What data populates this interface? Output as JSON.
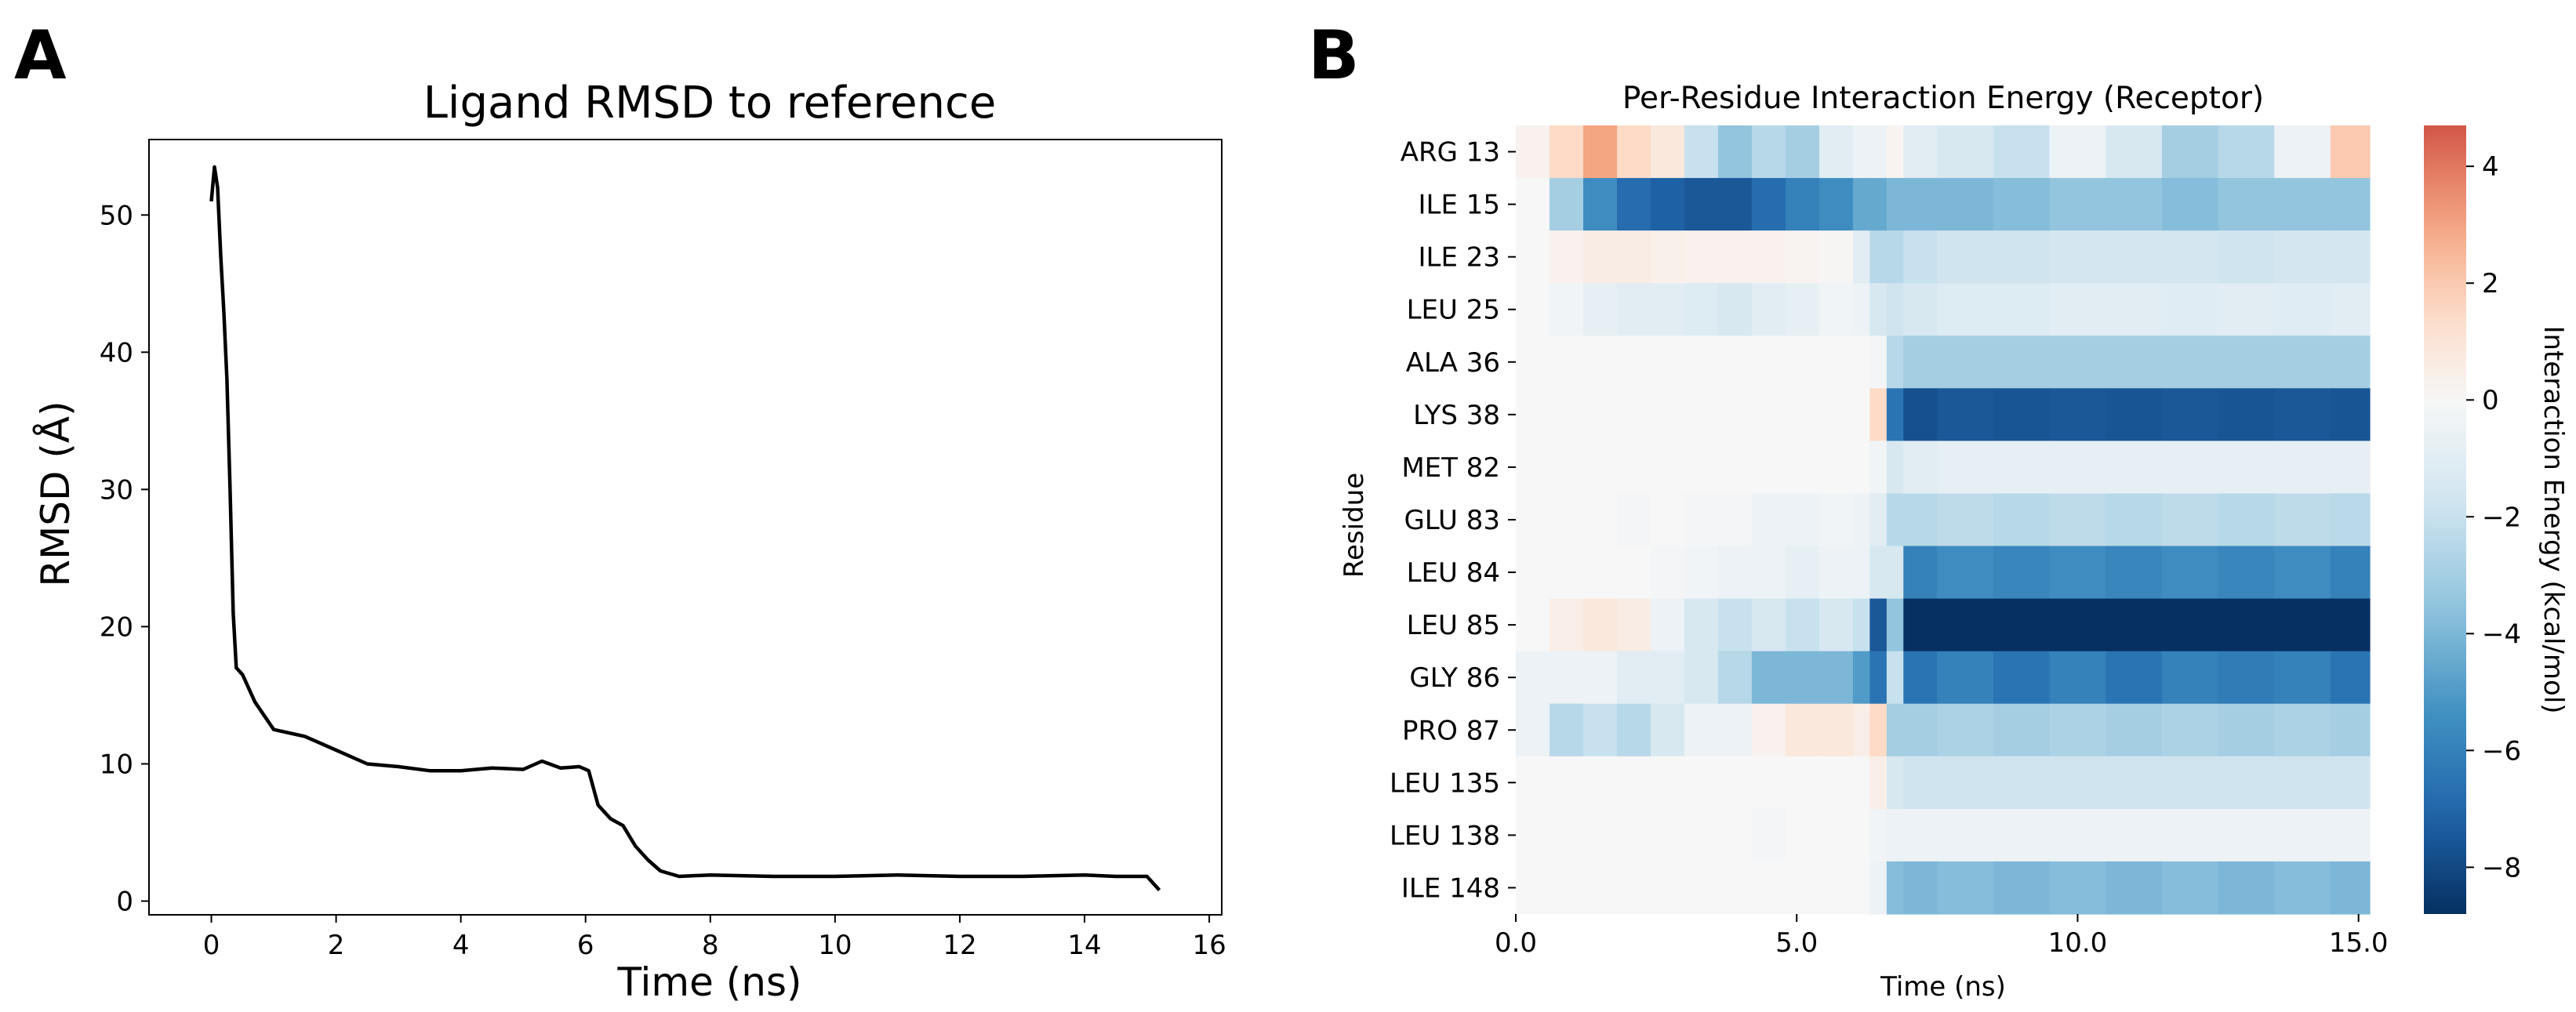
{
  "panel_labels": [
    "A",
    "B"
  ],
  "chart_data": [
    {
      "type": "line",
      "panel": "A",
      "title": "Ligand RMSD to reference",
      "xlabel": "Time (ns)",
      "ylabel": "RMSD (Å)",
      "xlim": [
        -1,
        16.2
      ],
      "ylim": [
        -1,
        55.5
      ],
      "xticks": [
        0,
        2,
        4,
        6,
        8,
        10,
        12,
        14,
        16
      ],
      "yticks": [
        0,
        10,
        20,
        30,
        40,
        50
      ],
      "grid": false,
      "series": [
        {
          "name": "RMSD",
          "color": "#000000",
          "x": [
            0,
            0.05,
            0.1,
            0.15,
            0.2,
            0.25,
            0.3,
            0.35,
            0.4,
            0.5,
            0.7,
            1.0,
            1.5,
            2.0,
            2.5,
            3.0,
            3.5,
            4.0,
            4.5,
            5.0,
            5.3,
            5.6,
            5.9,
            6.05,
            6.2,
            6.4,
            6.6,
            6.8,
            7.0,
            7.2,
            7.5,
            8.0,
            9.0,
            10.0,
            11.0,
            12.0,
            13.0,
            14.0,
            14.5,
            15.0,
            15.2
          ],
          "y": [
            51,
            53.5,
            52,
            47,
            43,
            38,
            30,
            21,
            17,
            16.5,
            14.5,
            12.5,
            12,
            11,
            10,
            9.8,
            9.5,
            9.5,
            9.7,
            9.6,
            10.2,
            9.7,
            9.8,
            9.5,
            7,
            6,
            5.5,
            4,
            3,
            2.2,
            1.8,
            1.9,
            1.8,
            1.8,
            1.9,
            1.8,
            1.8,
            1.9,
            1.8,
            1.8,
            0.8
          ]
        }
      ]
    },
    {
      "type": "heatmap",
      "panel": "B",
      "title": "Per-Residue Interaction Energy (Receptor)",
      "xlabel": "Time (ns)",
      "ylabel": "Residue",
      "xlim": [
        0,
        15.2
      ],
      "xticks": [
        0,
        5,
        10,
        15
      ],
      "xtick_labels": [
        "0.0",
        "5.0",
        "10.0",
        "15.0"
      ],
      "colorbar": {
        "label": "Interaction Energy (kcal/mol)",
        "vmin": -8.8,
        "vmax": 4.7,
        "ticks": [
          4,
          2,
          0,
          -2,
          -4,
          -6,
          -8
        ],
        "colormap": "RdBu_r"
      },
      "segment_boundaries_ns": [
        0,
        0.6,
        1.2,
        1.8,
        2.4,
        3.0,
        3.6,
        4.2,
        4.8,
        5.4,
        6.0,
        6.3,
        6.6,
        6.9,
        7.5,
        8.5,
        9.5,
        10.5,
        11.5,
        12.5,
        13.5,
        14.5,
        15.2
      ],
      "rows": [
        {
          "residue": "ARG 13",
          "energies": [
            0.3,
            1.5,
            3.0,
            1.5,
            0.8,
            -2.0,
            -3.5,
            -2.5,
            -3.0,
            -1.0,
            -0.5,
            -0.5,
            0.2,
            -1.0,
            -1.5,
            -2.0,
            -0.5,
            -1.5,
            -3.0,
            -2.5,
            -0.5,
            2.0
          ]
        },
        {
          "residue": "ILE 15",
          "energies": [
            0.0,
            -3.0,
            -5.5,
            -6.8,
            -7.2,
            -7.5,
            -7.5,
            -6.8,
            -6.0,
            -5.5,
            -4.5,
            -4.5,
            -4.0,
            -4.0,
            -4.0,
            -3.8,
            -3.5,
            -3.5,
            -3.8,
            -3.5,
            -3.5,
            -3.5
          ]
        },
        {
          "residue": "ILE 23",
          "energies": [
            0.0,
            0.3,
            0.6,
            0.6,
            0.4,
            0.3,
            0.3,
            0.3,
            0.2,
            0.1,
            -1.0,
            -2.5,
            -2.5,
            -2.0,
            -1.8,
            -1.8,
            -1.6,
            -1.6,
            -1.6,
            -1.8,
            -1.6,
            -1.6
          ]
        },
        {
          "residue": "LEU 25",
          "energies": [
            0.0,
            -0.3,
            -0.8,
            -1.0,
            -1.0,
            -1.2,
            -1.5,
            -1.0,
            -0.8,
            -0.3,
            -0.5,
            -1.5,
            -1.8,
            -1.5,
            -1.2,
            -1.2,
            -1.0,
            -1.0,
            -1.1,
            -1.0,
            -1.1,
            -1.0
          ]
        },
        {
          "residue": "ALA 36",
          "energies": [
            0.0,
            0.0,
            0.0,
            0.0,
            0.0,
            0.0,
            0.0,
            0.0,
            0.0,
            0.0,
            0.0,
            -0.2,
            -2.5,
            -3.0,
            -3.0,
            -3.0,
            -3.0,
            -3.0,
            -3.0,
            -3.0,
            -3.0,
            -3.0
          ]
        },
        {
          "residue": "LYS 38",
          "energies": [
            0.0,
            0.0,
            0.0,
            0.0,
            0.0,
            0.0,
            0.0,
            0.0,
            0.0,
            0.0,
            0.0,
            1.5,
            -6.5,
            -7.8,
            -7.5,
            -7.6,
            -7.5,
            -7.6,
            -7.5,
            -7.6,
            -7.5,
            -7.6
          ]
        },
        {
          "residue": "MET 82",
          "energies": [
            0.0,
            0.0,
            0.0,
            0.0,
            0.0,
            0.0,
            0.0,
            0.0,
            0.0,
            0.0,
            0.0,
            -0.3,
            -1.5,
            -1.0,
            -0.8,
            -0.8,
            -0.8,
            -0.8,
            -0.8,
            -0.8,
            -0.8,
            -0.8
          ]
        },
        {
          "residue": "GLU 83",
          "energies": [
            0.0,
            0.0,
            0.0,
            -0.2,
            0.0,
            -0.2,
            -0.2,
            -0.5,
            -0.5,
            -0.3,
            -0.5,
            -1.0,
            -2.5,
            -2.5,
            -2.3,
            -2.5,
            -2.3,
            -2.5,
            -2.3,
            -2.5,
            -2.3,
            -2.4
          ]
        },
        {
          "residue": "LEU 84",
          "energies": [
            0.0,
            0.0,
            0.0,
            0.0,
            -0.2,
            -0.3,
            -0.5,
            -0.5,
            -0.8,
            -0.5,
            -0.5,
            -1.5,
            -1.5,
            -6.0,
            -5.5,
            -5.8,
            -5.5,
            -5.8,
            -5.5,
            -5.8,
            -5.5,
            -6.0
          ]
        },
        {
          "residue": "LEU 85",
          "energies": [
            0.0,
            0.5,
            0.8,
            0.6,
            -0.5,
            -1.5,
            -2.0,
            -1.5,
            -2.0,
            -1.5,
            -2.0,
            -7.5,
            -3.5,
            -8.8,
            -8.8,
            -8.8,
            -8.8,
            -8.8,
            -8.8,
            -8.8,
            -8.8,
            -8.8
          ]
        },
        {
          "residue": "GLY 86",
          "energies": [
            -0.5,
            -0.5,
            -0.5,
            -1.0,
            -1.0,
            -1.5,
            -2.5,
            -4.0,
            -4.0,
            -4.0,
            -5.0,
            -6.5,
            -2.0,
            -6.5,
            -6.0,
            -6.5,
            -6.0,
            -6.5,
            -6.0,
            -6.2,
            -6.0,
            -6.5
          ]
        },
        {
          "residue": "PRO 87",
          "energies": [
            -0.5,
            -2.5,
            -2.0,
            -2.5,
            -1.5,
            -0.5,
            -0.5,
            0.3,
            0.8,
            0.8,
            0.5,
            1.5,
            -3.0,
            -3.0,
            -2.8,
            -3.0,
            -2.8,
            -3.0,
            -2.8,
            -3.0,
            -2.8,
            -3.0
          ]
        },
        {
          "residue": "LEU 135",
          "energies": [
            0.0,
            0.0,
            0.0,
            0.0,
            0.0,
            0.0,
            0.0,
            0.0,
            0.0,
            0.0,
            0.0,
            0.5,
            -1.5,
            -1.8,
            -1.8,
            -1.8,
            -1.8,
            -1.8,
            -1.8,
            -1.8,
            -1.8,
            -1.8
          ]
        },
        {
          "residue": "LEU 138",
          "energies": [
            0.0,
            0.0,
            0.0,
            0.0,
            0.0,
            0.0,
            0.0,
            -0.2,
            0.0,
            0.0,
            0.0,
            -0.3,
            -0.5,
            -0.5,
            -0.5,
            -0.5,
            -0.5,
            -0.5,
            -0.5,
            -0.5,
            -0.5,
            -0.5
          ]
        },
        {
          "residue": "ILE 148",
          "energies": [
            0.0,
            0.0,
            0.0,
            0.0,
            0.0,
            0.0,
            0.0,
            0.0,
            0.0,
            0.0,
            0.0,
            -0.5,
            -3.8,
            -4.0,
            -3.8,
            -4.0,
            -3.8,
            -4.0,
            -3.8,
            -4.0,
            -3.8,
            -4.0
          ]
        }
      ]
    }
  ]
}
